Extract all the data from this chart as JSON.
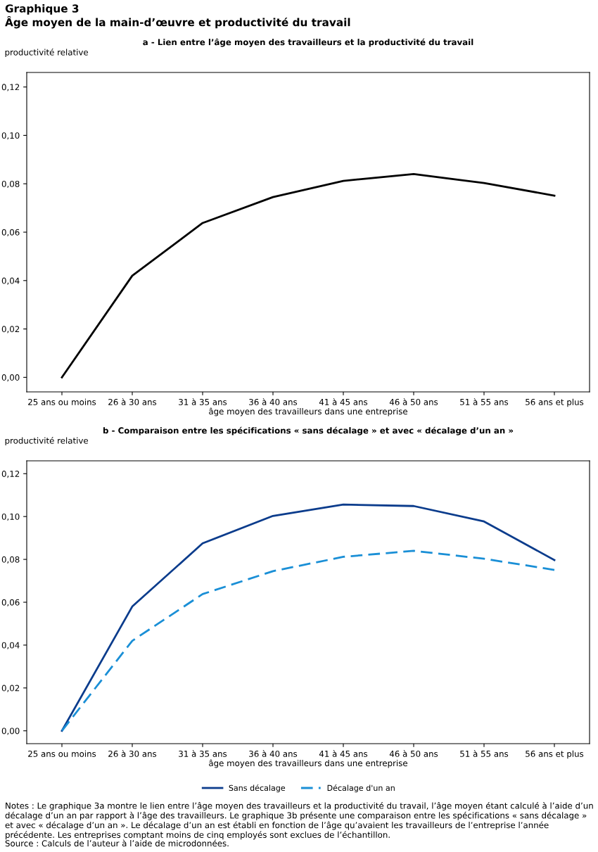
{
  "chart_data": [
    {
      "type": "line",
      "title": "a - Lien entre l’âge moyen des travailleurs et la productivité du travail",
      "xlabel": "âge moyen des travailleurs dans une entreprise",
      "ylabel": "productivité relative",
      "annotations": [
        "Graphique 3",
        "Âge moyen de la main-d’œuvre et productivité du travail"
      ],
      "categories": [
        "25 ans ou moins",
        "26 à 30 ans",
        "31 à 35 ans",
        "36 à 40 ans",
        "41 à 45 ans",
        "46 à 50 ans",
        "51 à 55 ans",
        "56 ans et plus"
      ],
      "series": [
        {
          "color": "#000000",
          "values": [
            0.0,
            0.042,
            0.0638,
            0.0745,
            0.0812,
            0.084,
            0.0803,
            0.0751
          ]
        }
      ],
      "ylim": [
        -0.006,
        0.126
      ],
      "yticks": [
        {
          "value": 0,
          "label": "0,00"
        },
        {
          "value": 0.02,
          "label": "0,02"
        },
        {
          "value": 0.04,
          "label": "0,04"
        },
        {
          "value": 0.06,
          "label": "0,06"
        },
        {
          "value": 0.08,
          "label": "0,08"
        },
        {
          "value": 0.1,
          "label": "0,10"
        },
        {
          "value": 0.12,
          "label": "0,12"
        }
      ],
      "grid": false,
      "legend": false,
      "line_style": "solid"
    },
    {
      "type": "line",
      "title": "b - Comparaison entre les spécifications « sans décalage » et avec « décalage d’un an »",
      "xlabel": "âge moyen des travailleurs dans une entreprise",
      "ylabel": "productivité relative",
      "annotations": [
        "Notes : Le graphique 3a montre le lien entre l’âge moyen des travailleurs et la productivité du travail, l’âge moyen étant calculé à l’aide d’un décalage d’un an par rapport à l’âge des travailleurs. Le graphique 3b présente une comparaison entre les spécifications « sans décalage » et avec « décalage d’un an ». Le décalage d’un an est établi en fonction de l’âge qu’avaient les travailleurs de l’entreprise l’année précédente. Les entreprises comptant moins de cinq employés sont exclues de l’échantillon.",
        "Source : Calculs de l’auteur à l’aide de microdonnées."
      ],
      "categories": [
        "25 ans ou moins",
        "26 à 30 ans",
        "31 à 35 ans",
        "36 à 40 ans",
        "41 à 45 ans",
        "46 à 50 ans",
        "51 à 55 ans",
        "56 ans et plus"
      ],
      "series": [
        {
          "name": "Sans décalage",
          "color": "#0b3c8c",
          "line_style": "solid",
          "values": [
            0.0,
            0.058,
            0.0875,
            0.1003,
            0.1056,
            0.1049,
            0.0977,
            0.0797
          ]
        },
        {
          "name": "Décalage d'un an",
          "color": "#1a8fd6",
          "line_style": "dashed",
          "values": [
            0.0,
            0.042,
            0.0638,
            0.0745,
            0.0812,
            0.084,
            0.0803,
            0.0751
          ]
        }
      ],
      "ylim": [
        -0.006,
        0.126
      ],
      "yticks": [
        {
          "value": 0,
          "label": "0,00"
        },
        {
          "value": 0.02,
          "label": "0,02"
        },
        {
          "value": 0.04,
          "label": "0,04"
        },
        {
          "value": 0.06,
          "label": "0,06"
        },
        {
          "value": 0.08,
          "label": "0,08"
        },
        {
          "value": 0.1,
          "label": "0,10"
        },
        {
          "value": 0.12,
          "label": "0,12"
        }
      ],
      "grid": false,
      "legend": "bottom"
    }
  ]
}
